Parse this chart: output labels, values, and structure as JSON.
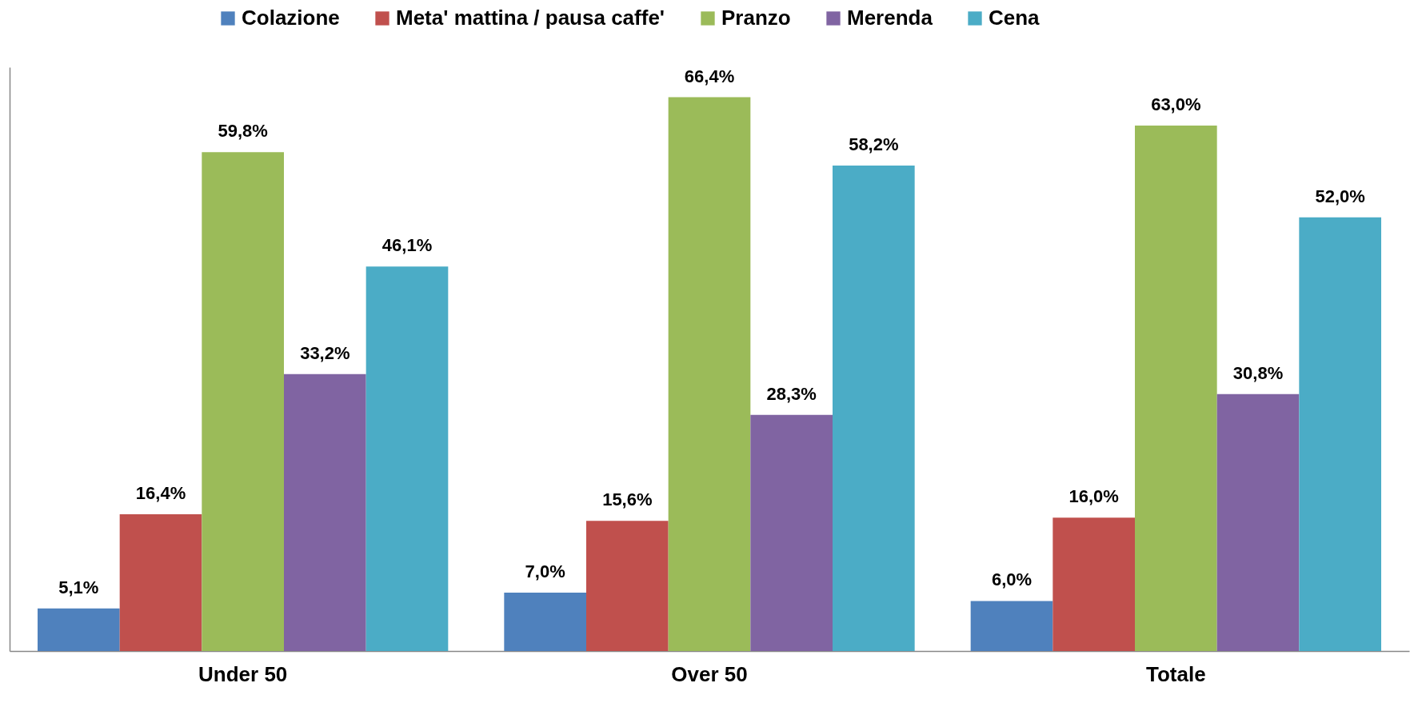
{
  "chart_data": {
    "type": "bar",
    "categories": [
      "Under 50",
      "Over 50",
      "Totale"
    ],
    "series": [
      {
        "name": "Colazione",
        "color": "#4f81bd",
        "values": [
          5.1,
          7.0,
          6.0
        ],
        "value_labels": [
          "5,1%",
          "7,0%",
          "6,0%"
        ]
      },
      {
        "name": "Meta' mattina / pausa caffe'",
        "color": "#c0504d",
        "values": [
          16.4,
          15.6,
          16.0
        ],
        "value_labels": [
          "16,4%",
          "15,6%",
          "16,0%"
        ]
      },
      {
        "name": "Pranzo",
        "color": "#9bbb59",
        "values": [
          59.8,
          66.4,
          63.0
        ],
        "value_labels": [
          "59,8%",
          "66,4%",
          "63,0%"
        ]
      },
      {
        "name": "Merenda",
        "color": "#8064a2",
        "values": [
          33.2,
          28.3,
          30.8
        ],
        "value_labels": [
          "33,2%",
          "28,3%",
          "30,8%"
        ]
      },
      {
        "name": "Cena",
        "color": "#4bacc6",
        "values": [
          46.1,
          58.2,
          52.0
        ],
        "value_labels": [
          "46,1%",
          "58,2%",
          "52,0%"
        ]
      }
    ],
    "ylim": [
      0,
      70
    ],
    "legend": "top",
    "grid": false
  }
}
